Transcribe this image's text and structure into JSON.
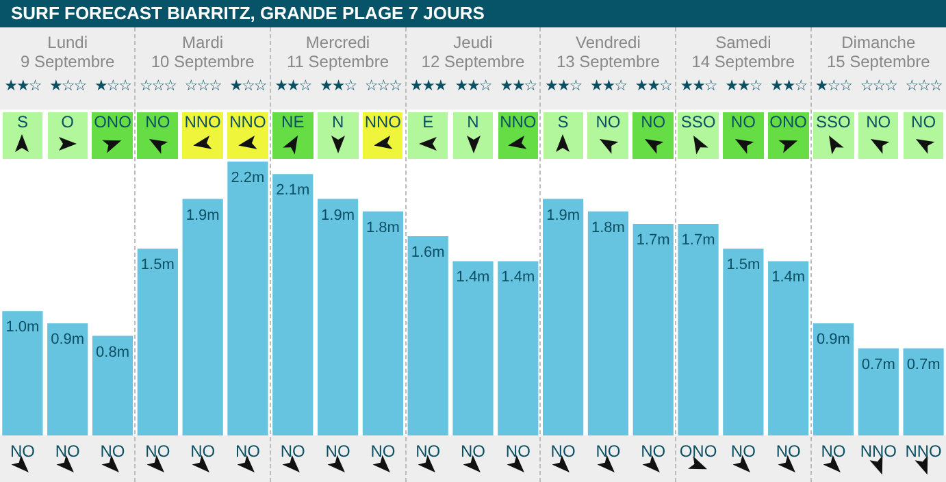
{
  "chart_data": {
    "type": "bar",
    "title": "SURF FORECAST BIARRITZ, GRANDE PLAGE 7 JOURS",
    "categories": [
      "NO",
      "NO",
      "NO",
      "NO",
      "NO",
      "NO",
      "NO",
      "NO",
      "NO",
      "NO",
      "NO",
      "NO",
      "NO",
      "NO",
      "NO",
      "ONO",
      "NO",
      "NO",
      "NO",
      "NNO",
      "NNO"
    ],
    "values": [
      1.0,
      0.9,
      0.8,
      1.5,
      1.9,
      2.2,
      2.1,
      1.9,
      1.8,
      1.6,
      1.4,
      1.4,
      1.9,
      1.8,
      1.7,
      1.7,
      1.5,
      1.4,
      0.9,
      0.7,
      0.7
    ],
    "value_labels": [
      "1.0m",
      "0.9m",
      "0.8m",
      "1.5m",
      "1.9m",
      "2.2m",
      "2.1m",
      "1.9m",
      "1.8m",
      "1.6m",
      "1.4m",
      "1.4m",
      "1.9m",
      "1.8m",
      "1.7m",
      "1.7m",
      "1.5m",
      "1.4m",
      "0.9m",
      "0.7m",
      "0.7m"
    ],
    "color": "#66c4e0",
    "annotations": [
      "Lundi",
      "Mardi",
      "Mercredi",
      "Jeudi",
      "Vendredi",
      "Samedi",
      "Dimanche",
      "9 Septembre",
      "10 Septembre",
      "11 Septembre",
      "12 Septembre",
      "13 Septembre",
      "14 Septembre",
      "15 Septembre",
      "★★☆",
      "★☆☆",
      "★☆☆",
      "☆☆☆",
      "☆☆☆",
      "★☆☆",
      "★★☆",
      "★★☆",
      "☆☆☆",
      "★★★",
      "★★☆",
      "★★☆",
      "★★☆",
      "★★☆",
      "★★☆",
      "★★☆",
      "★★☆",
      "★★☆",
      "★☆☆",
      "☆☆☆",
      "☆☆☆",
      "S",
      "O",
      "ONO",
      "NO",
      "NNO",
      "NNO",
      "NE",
      "N",
      "NNO",
      "E",
      "N",
      "NNO",
      "S",
      "NO",
      "NO",
      "SSO",
      "NO",
      "ONO",
      "SSO",
      "NO",
      "NO"
    ]
  }
}
